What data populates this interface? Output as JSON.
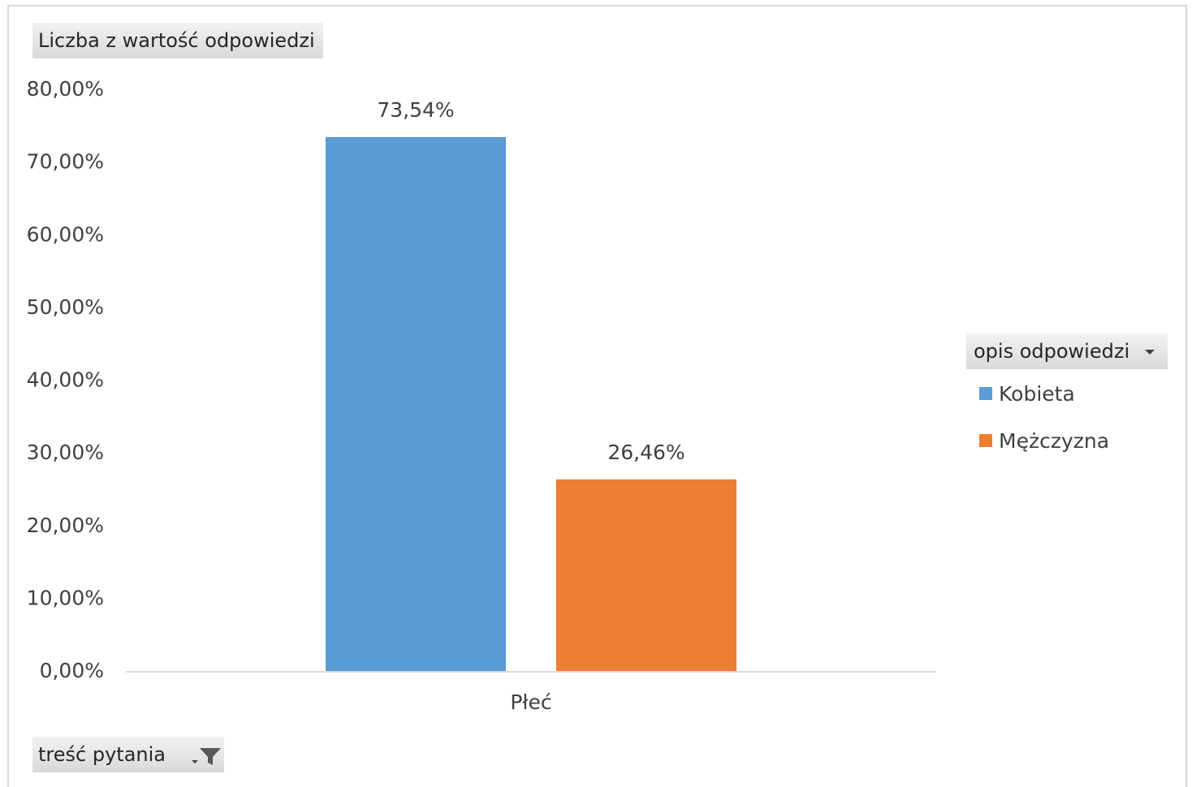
{
  "value_field": {
    "label": "Liczba z wartość odpowiedzi"
  },
  "legend_field": {
    "label": "opis odpowiedzi"
  },
  "filter_field": {
    "label": "treść pytania"
  },
  "icons": {
    "legend_dropdown": "chevron-down-icon",
    "filter": "funnel-icon"
  },
  "chart_data": {
    "type": "bar",
    "categories": [
      "Płeć"
    ],
    "series": [
      {
        "name": "Kobieta",
        "values": [
          73.54
        ],
        "label": "73,54%",
        "color": "#5b9bd5"
      },
      {
        "name": "Mężczyzna",
        "values": [
          26.46
        ],
        "label": "26,46%",
        "color": "#ed7d31"
      }
    ],
    "ylim": [
      0,
      80
    ],
    "yticks": [
      0,
      10,
      20,
      30,
      40,
      50,
      60,
      70,
      80
    ],
    "ytick_labels": [
      "0,00%",
      "10,00%",
      "20,00%",
      "30,00%",
      "40,00%",
      "50,00%",
      "60,00%",
      "70,00%",
      "80,00%"
    ],
    "legend_position": "right",
    "grid": false
  }
}
